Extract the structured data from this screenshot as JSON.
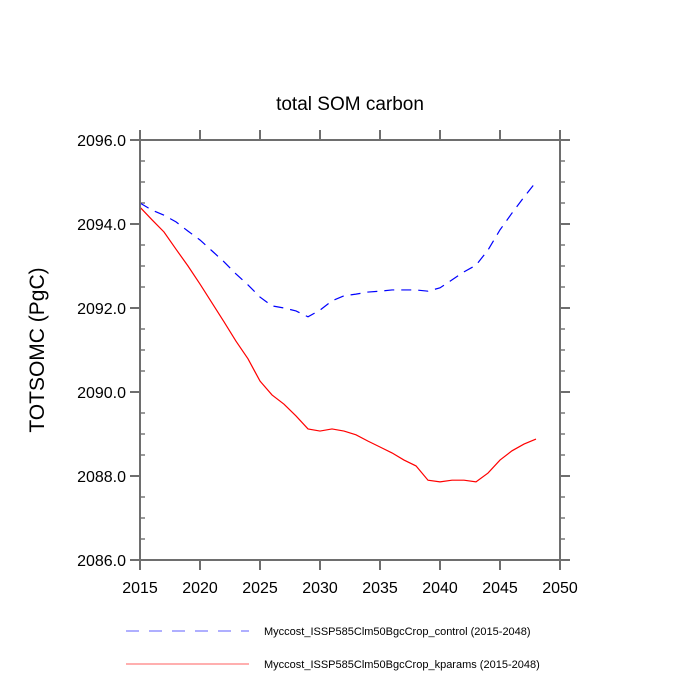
{
  "chart_data": {
    "type": "line",
    "title": "total SOM carbon",
    "xlabel": "",
    "ylabel": "TOTSOMC  (PgC)",
    "xlim": [
      2015,
      2050
    ],
    "ylim": [
      2086.0,
      2096.0
    ],
    "xticks": [
      2015,
      2020,
      2025,
      2030,
      2035,
      2040,
      2045,
      2050
    ],
    "xtick_labels": [
      "2015",
      "2020",
      "2025",
      "2030",
      "2035",
      "2040",
      "2045",
      "2050"
    ],
    "yticks": [
      2086.0,
      2088.0,
      2090.0,
      2092.0,
      2094.0,
      2096.0
    ],
    "ytick_labels": [
      "2086.0",
      "2088.0",
      "2090.0",
      "2092.0",
      "2094.0",
      "2096.0"
    ],
    "grid": false,
    "legend_position": "bottom",
    "x": [
      2015,
      2016,
      2017,
      2018,
      2019,
      2020,
      2021,
      2022,
      2023,
      2024,
      2025,
      2026,
      2027,
      2028,
      2029,
      2030,
      2031,
      2032,
      2033,
      2034,
      2035,
      2036,
      2037,
      2038,
      2039,
      2040,
      2041,
      2042,
      2043,
      2044,
      2045,
      2046,
      2047,
      2048
    ],
    "series": [
      {
        "name": "Myccost_ISSP585Clm50BgcCrop_control (2015-2048)",
        "color": "#0000ff",
        "style": "dashed",
        "values": [
          2094.5,
          2094.33,
          2094.21,
          2094.05,
          2093.83,
          2093.62,
          2093.36,
          2093.1,
          2092.81,
          2092.55,
          2092.26,
          2092.05,
          2092.0,
          2091.93,
          2091.79,
          2091.95,
          2092.17,
          2092.29,
          2092.33,
          2092.38,
          2092.4,
          2092.43,
          2092.43,
          2092.43,
          2092.4,
          2092.48,
          2092.67,
          2092.86,
          2093.02,
          2093.38,
          2093.86,
          2094.26,
          2094.64,
          2095.0
        ]
      },
      {
        "name": "Myccost_ISSP585Clm50BgcCrop_kparams (2015-2048)",
        "color": "#ff0000",
        "style": "solid",
        "values": [
          2094.4,
          2094.1,
          2093.81,
          2093.4,
          2093.0,
          2092.57,
          2092.12,
          2091.67,
          2091.21,
          2090.79,
          2090.26,
          2089.93,
          2089.71,
          2089.43,
          2089.12,
          2089.07,
          2089.12,
          2089.07,
          2088.98,
          2088.83,
          2088.69,
          2088.55,
          2088.38,
          2088.24,
          2087.9,
          2087.86,
          2087.9,
          2087.9,
          2087.86,
          2088.07,
          2088.38,
          2088.6,
          2088.76,
          2088.88
        ]
      }
    ]
  }
}
